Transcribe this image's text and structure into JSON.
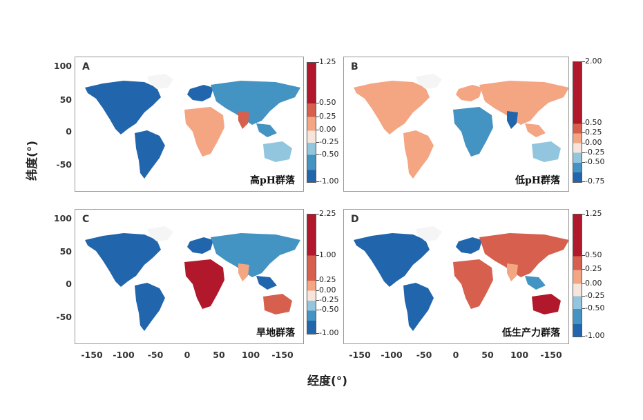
{
  "axes": {
    "ylabel": "纬度(°)",
    "xlabel": "经度(°)",
    "yticks": [
      "100",
      "50",
      "0",
      "-50"
    ],
    "xticks": [
      "-150",
      "-100",
      "-50",
      "0",
      "50",
      "100",
      "-150"
    ]
  },
  "chart_data": [
    {
      "type": "heatmap",
      "letter": "A",
      "label": "高pH群落",
      "colorbar_ticks": [
        "1.25",
        "0.50",
        "0.25",
        "0.00",
        "-0.25",
        "-0.50",
        "-1.00"
      ],
      "colorbar_range": [
        -1.0,
        1.25
      ]
    },
    {
      "type": "heatmap",
      "letter": "B",
      "label": "低pH群落",
      "colorbar_ticks": [
        "2.00",
        "0.50",
        "0.25",
        "0.00",
        "-0.25",
        "-0.50",
        "-0.75"
      ],
      "colorbar_range": [
        -0.75,
        2.0
      ]
    },
    {
      "type": "heatmap",
      "letter": "C",
      "label": "旱地群落",
      "colorbar_ticks": [
        "2.25",
        "1.00",
        "0.25",
        "0.00",
        "-0.25",
        "-0.50",
        "-1.00"
      ],
      "colorbar_range": [
        -1.0,
        2.25
      ]
    },
    {
      "type": "heatmap",
      "letter": "D",
      "label": "低生产力群落",
      "colorbar_ticks": [
        "1.25",
        "0.50",
        "0.25",
        "0.00",
        "-0.25",
        "-0.50",
        "-1.00"
      ],
      "colorbar_range": [
        -1.0,
        1.25
      ]
    }
  ],
  "colors": {
    "deep_red": "#b2182b",
    "red": "#d6604d",
    "light_red": "#f4a582",
    "pale": "#f7e4da",
    "light_blue": "#92c5de",
    "blue": "#4393c3",
    "deep_blue": "#2166ac"
  }
}
